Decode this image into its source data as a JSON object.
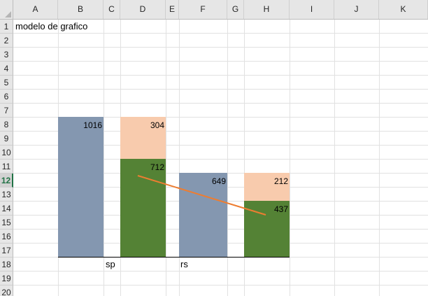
{
  "sheet": {
    "columns": [
      "A",
      "B",
      "C",
      "D",
      "E",
      "F",
      "G",
      "H",
      "I",
      "J",
      "K"
    ],
    "rows": [
      "1",
      "2",
      "3",
      "4",
      "5",
      "6",
      "7",
      "8",
      "9",
      "10",
      "11",
      "12",
      "13",
      "14",
      "15",
      "16",
      "17",
      "18",
      "19",
      "20"
    ],
    "active_row": "12",
    "cell_a1": "modelo de grafico"
  },
  "colors": {
    "blue_bar": "#8497b0",
    "peach_bar": "#f8cbad",
    "green_bar": "#548235",
    "trend_line": "#ed7d31"
  },
  "chart_data": {
    "type": "bar",
    "categories": [
      "sp",
      "rs"
    ],
    "stacked": true,
    "series": [
      {
        "values": [
          1016,
          649
        ]
      },
      {
        "values": [
          712,
          437
        ]
      },
      {
        "values": [
          304,
          212
        ]
      }
    ],
    "data_labels": [
      "1016",
      "304",
      "712",
      "649",
      "212",
      "437"
    ],
    "trend_line": true
  }
}
